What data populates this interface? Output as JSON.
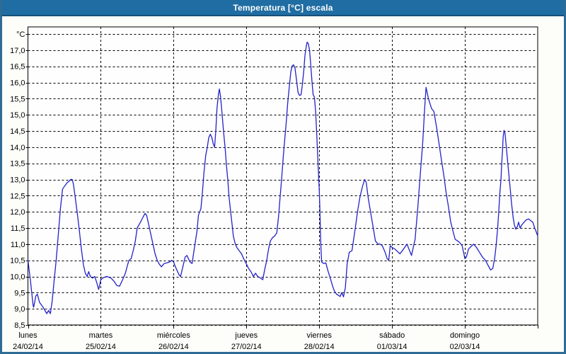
{
  "window": {
    "title": "Temperatura [°C] escala"
  },
  "chart_data": {
    "type": "line",
    "title": "Temperatura [°C] escala",
    "series_name": "Temperatura",
    "line_color": "#2222C8",
    "grid_color": "#000000",
    "plot_bg": "#FEFEFE",
    "ylim": [
      8.5,
      17.72
    ],
    "y_tick_step": 0.5,
    "y_axis_unit": "°C",
    "y_tick_values": [
      17.0,
      16.5,
      16.0,
      15.5,
      15.0,
      14.5,
      14.0,
      13.5,
      13.0,
      12.5,
      12.0,
      11.5,
      11.0,
      10.5,
      10.0,
      9.5,
      9.0,
      8.5
    ],
    "y_tick_labels": [
      "17,0",
      "16,5",
      "16,0",
      "15,5",
      "15,0",
      "14,5",
      "14,0",
      "13,5",
      "13,0",
      "12,5",
      "12,0",
      "11,5",
      "11,0",
      "10,5",
      "10,0",
      "9,5",
      "9,0",
      "8,5"
    ],
    "x_total_hours": 168,
    "hours_per_day": 24,
    "x_days": [
      {
        "name": "lunes",
        "date": "24/02/14"
      },
      {
        "name": "martes",
        "date": "25/02/14"
      },
      {
        "name": "miércoles",
        "date": "26/02/14"
      },
      {
        "name": "jueves",
        "date": "27/02/14"
      },
      {
        "name": "viernes",
        "date": "28/02/14"
      },
      {
        "name": "sábado",
        "date": "01/03/14"
      },
      {
        "name": "domingo",
        "date": "02/03/14"
      }
    ],
    "points": [
      [
        0,
        10.5
      ],
      [
        0.8,
        9.9
      ],
      [
        1.7,
        9.1
      ],
      [
        1.9,
        9.05
      ],
      [
        2.6,
        9.4
      ],
      [
        3.1,
        9.45
      ],
      [
        3.8,
        9.2
      ],
      [
        5.0,
        9.05
      ],
      [
        6.2,
        8.85
      ],
      [
        6.8,
        8.95
      ],
      [
        7.4,
        8.85
      ],
      [
        8.0,
        9.25
      ],
      [
        8.6,
        9.85
      ],
      [
        9.3,
        10.5
      ],
      [
        10.0,
        11.3
      ],
      [
        10.7,
        12.1
      ],
      [
        11.4,
        12.7
      ],
      [
        12.1,
        12.8
      ],
      [
        12.9,
        12.9
      ],
      [
        13.6,
        12.95
      ],
      [
        14.1,
        13.0
      ],
      [
        14.6,
        13.0
      ],
      [
        15.0,
        12.85
      ],
      [
        15.5,
        12.5
      ],
      [
        16.2,
        12.0
      ],
      [
        16.9,
        11.45
      ],
      [
        17.6,
        10.85
      ],
      [
        18.3,
        10.35
      ],
      [
        18.9,
        10.1
      ],
      [
        19.5,
        10.0
      ],
      [
        20.0,
        10.15
      ],
      [
        20.6,
        10.0
      ],
      [
        21.3,
        9.95
      ],
      [
        22.0,
        10.0
      ],
      [
        22.7,
        9.8
      ],
      [
        23.3,
        9.6
      ],
      [
        23.7,
        9.75
      ],
      [
        24.0,
        9.9
      ],
      [
        25.0,
        9.97
      ],
      [
        26.0,
        10.0
      ],
      [
        27.4,
        9.95
      ],
      [
        28.4,
        9.85
      ],
      [
        29.3,
        9.72
      ],
      [
        30.2,
        9.7
      ],
      [
        31.2,
        9.9
      ],
      [
        32.1,
        10.1
      ],
      [
        32.8,
        10.35
      ],
      [
        33.3,
        10.5
      ],
      [
        34.0,
        10.55
      ],
      [
        34.7,
        10.8
      ],
      [
        35.4,
        11.1
      ],
      [
        36.0,
        11.5
      ],
      [
        36.6,
        11.6
      ],
      [
        37.3,
        11.72
      ],
      [
        38.0,
        11.85
      ],
      [
        38.6,
        11.95
      ],
      [
        39.1,
        11.9
      ],
      [
        39.8,
        11.6
      ],
      [
        40.5,
        11.3
      ],
      [
        41.2,
        11.0
      ],
      [
        41.9,
        10.7
      ],
      [
        42.6,
        10.5
      ],
      [
        43.3,
        10.38
      ],
      [
        44.0,
        10.3
      ],
      [
        44.9,
        10.4
      ],
      [
        45.8,
        10.42
      ],
      [
        46.7,
        10.45
      ],
      [
        47.4,
        10.5
      ],
      [
        48.0,
        10.45
      ],
      [
        48.6,
        10.3
      ],
      [
        49.8,
        10.05
      ],
      [
        50.3,
        10.0
      ],
      [
        51.8,
        10.6
      ],
      [
        52.4,
        10.65
      ],
      [
        53.4,
        10.45
      ],
      [
        54.1,
        10.4
      ],
      [
        54.9,
        10.9
      ],
      [
        55.7,
        11.4
      ],
      [
        56.2,
        11.9
      ],
      [
        57.0,
        12.1
      ],
      [
        57.5,
        12.6
      ],
      [
        58.0,
        13.2
      ],
      [
        58.6,
        13.75
      ],
      [
        59.1,
        14.0
      ],
      [
        59.6,
        14.3
      ],
      [
        60.1,
        14.4
      ],
      [
        60.6,
        14.3
      ],
      [
        61.1,
        14.1
      ],
      [
        61.5,
        14.0
      ],
      [
        61.9,
        14.5
      ],
      [
        62.3,
        15.2
      ],
      [
        62.8,
        15.65
      ],
      [
        63.1,
        15.8
      ],
      [
        63.5,
        15.55
      ],
      [
        64.0,
        15.0
      ],
      [
        64.5,
        14.45
      ],
      [
        65.0,
        13.95
      ],
      [
        65.4,
        13.45
      ],
      [
        65.9,
        12.95
      ],
      [
        66.3,
        12.45
      ],
      [
        66.8,
        12.0
      ],
      [
        67.3,
        11.6
      ],
      [
        67.7,
        11.25
      ],
      [
        68.2,
        11.05
      ],
      [
        68.8,
        10.9
      ],
      [
        69.6,
        10.8
      ],
      [
        70.4,
        10.7
      ],
      [
        71.1,
        10.55
      ],
      [
        71.9,
        10.4
      ],
      [
        72.7,
        10.25
      ],
      [
        73.5,
        10.15
      ],
      [
        74.3,
        10.0
      ],
      [
        75.0,
        10.1
      ],
      [
        75.7,
        10.0
      ],
      [
        76.7,
        9.95
      ],
      [
        77.4,
        9.9
      ],
      [
        78.0,
        10.2
      ],
      [
        78.7,
        10.5
      ],
      [
        79.3,
        10.85
      ],
      [
        79.9,
        11.1
      ],
      [
        80.6,
        11.2
      ],
      [
        81.3,
        11.25
      ],
      [
        82.0,
        11.35
      ],
      [
        82.6,
        11.85
      ],
      [
        83.1,
        12.45
      ],
      [
        83.6,
        13.0
      ],
      [
        84.1,
        13.65
      ],
      [
        84.6,
        14.2
      ],
      [
        85.1,
        14.75
      ],
      [
        85.6,
        15.35
      ],
      [
        86.1,
        15.85
      ],
      [
        86.6,
        16.3
      ],
      [
        87.0,
        16.5
      ],
      [
        87.5,
        16.55
      ],
      [
        88.0,
        16.45
      ],
      [
        88.5,
        16.1
      ],
      [
        89.0,
        15.7
      ],
      [
        89.5,
        15.6
      ],
      [
        90.0,
        15.62
      ],
      [
        90.4,
        15.9
      ],
      [
        90.9,
        16.35
      ],
      [
        91.3,
        16.85
      ],
      [
        91.7,
        17.1
      ],
      [
        92.0,
        17.25
      ],
      [
        92.4,
        17.2
      ],
      [
        92.8,
        17.0
      ],
      [
        93.2,
        16.55
      ],
      [
        93.6,
        16.05
      ],
      [
        94.0,
        15.62
      ],
      [
        94.4,
        15.55
      ],
      [
        94.8,
        15.1
      ],
      [
        95.2,
        14.35
      ],
      [
        95.6,
        13.5
      ],
      [
        96.0,
        12.7
      ],
      [
        96.2,
        12.1
      ],
      [
        96.5,
        11.0
      ],
      [
        96.8,
        10.45
      ],
      [
        97.5,
        10.4
      ],
      [
        98.2,
        10.42
      ],
      [
        98.8,
        10.2
      ],
      [
        99.8,
        9.9
      ],
      [
        100.4,
        9.7
      ],
      [
        101.0,
        9.55
      ],
      [
        101.7,
        9.45
      ],
      [
        102.3,
        9.42
      ],
      [
        102.9,
        9.38
      ],
      [
        103.4,
        9.5
      ],
      [
        104.0,
        9.37
      ],
      [
        104.6,
        9.65
      ],
      [
        105.2,
        10.4
      ],
      [
        105.9,
        10.75
      ],
      [
        106.8,
        10.8
      ],
      [
        107.9,
        11.5
      ],
      [
        108.6,
        12.0
      ],
      [
        109.4,
        12.45
      ],
      [
        110.3,
        12.8
      ],
      [
        111.0,
        13.0
      ],
      [
        111.5,
        12.9
      ],
      [
        112.1,
        12.45
      ],
      [
        113.0,
        11.95
      ],
      [
        113.8,
        11.5
      ],
      [
        114.5,
        11.1
      ],
      [
        115.4,
        11.0
      ],
      [
        116.1,
        11.0
      ],
      [
        116.8,
        10.95
      ],
      [
        117.7,
        10.75
      ],
      [
        118.4,
        10.55
      ],
      [
        118.9,
        10.5
      ],
      [
        119.4,
        10.95
      ],
      [
        120.0,
        10.9
      ],
      [
        120.9,
        10.85
      ],
      [
        122.6,
        10.7
      ],
      [
        123.8,
        10.85
      ],
      [
        124.9,
        11.0
      ],
      [
        126.4,
        10.65
      ],
      [
        127.6,
        11.15
      ],
      [
        128.5,
        12.15
      ],
      [
        129.3,
        13.15
      ],
      [
        130.1,
        14.15
      ],
      [
        130.8,
        15.3
      ],
      [
        131.2,
        15.85
      ],
      [
        132.0,
        15.5
      ],
      [
        133.0,
        15.2
      ],
      [
        133.8,
        15.1
      ],
      [
        134.7,
        14.6
      ],
      [
        135.5,
        14.1
      ],
      [
        136.3,
        13.6
      ],
      [
        137.1,
        13.1
      ],
      [
        137.8,
        12.6
      ],
      [
        138.6,
        12.15
      ],
      [
        139.3,
        11.7
      ],
      [
        140.1,
        11.4
      ],
      [
        140.8,
        11.15
      ],
      [
        141.6,
        11.1
      ],
      [
        142.3,
        11.05
      ],
      [
        143.1,
        10.95
      ],
      [
        144.0,
        10.55
      ],
      [
        144.5,
        10.6
      ],
      [
        145.2,
        10.85
      ],
      [
        146.3,
        10.95
      ],
      [
        146.9,
        11.0
      ],
      [
        147.8,
        10.9
      ],
      [
        148.8,
        10.75
      ],
      [
        149.8,
        10.6
      ],
      [
        150.8,
        10.5
      ],
      [
        151.6,
        10.35
      ],
      [
        152.5,
        10.2
      ],
      [
        153.2,
        10.25
      ],
      [
        153.8,
        10.55
      ],
      [
        154.3,
        10.95
      ],
      [
        154.8,
        11.5
      ],
      [
        155.2,
        12.05
      ],
      [
        155.5,
        12.55
      ],
      [
        155.9,
        13.0
      ],
      [
        156.1,
        13.45
      ],
      [
        156.4,
        13.9
      ],
      [
        156.6,
        14.3
      ],
      [
        156.9,
        14.52
      ],
      [
        157.2,
        14.45
      ],
      [
        157.5,
        14.15
      ],
      [
        157.9,
        13.75
      ],
      [
        158.4,
        13.25
      ],
      [
        158.9,
        12.75
      ],
      [
        159.4,
        12.25
      ],
      [
        159.9,
        11.82
      ],
      [
        160.3,
        11.6
      ],
      [
        160.8,
        11.46
      ],
      [
        161.3,
        11.55
      ],
      [
        161.7,
        11.68
      ],
      [
        162.2,
        11.5
      ],
      [
        162.8,
        11.6
      ],
      [
        163.5,
        11.68
      ],
      [
        164.2,
        11.75
      ],
      [
        165.0,
        11.78
      ],
      [
        165.8,
        11.72
      ],
      [
        166.4,
        11.68
      ],
      [
        167.0,
        11.5
      ],
      [
        167.5,
        11.38
      ],
      [
        168.0,
        11.25
      ]
    ],
    "legend": "none",
    "grid": "dashed"
  }
}
